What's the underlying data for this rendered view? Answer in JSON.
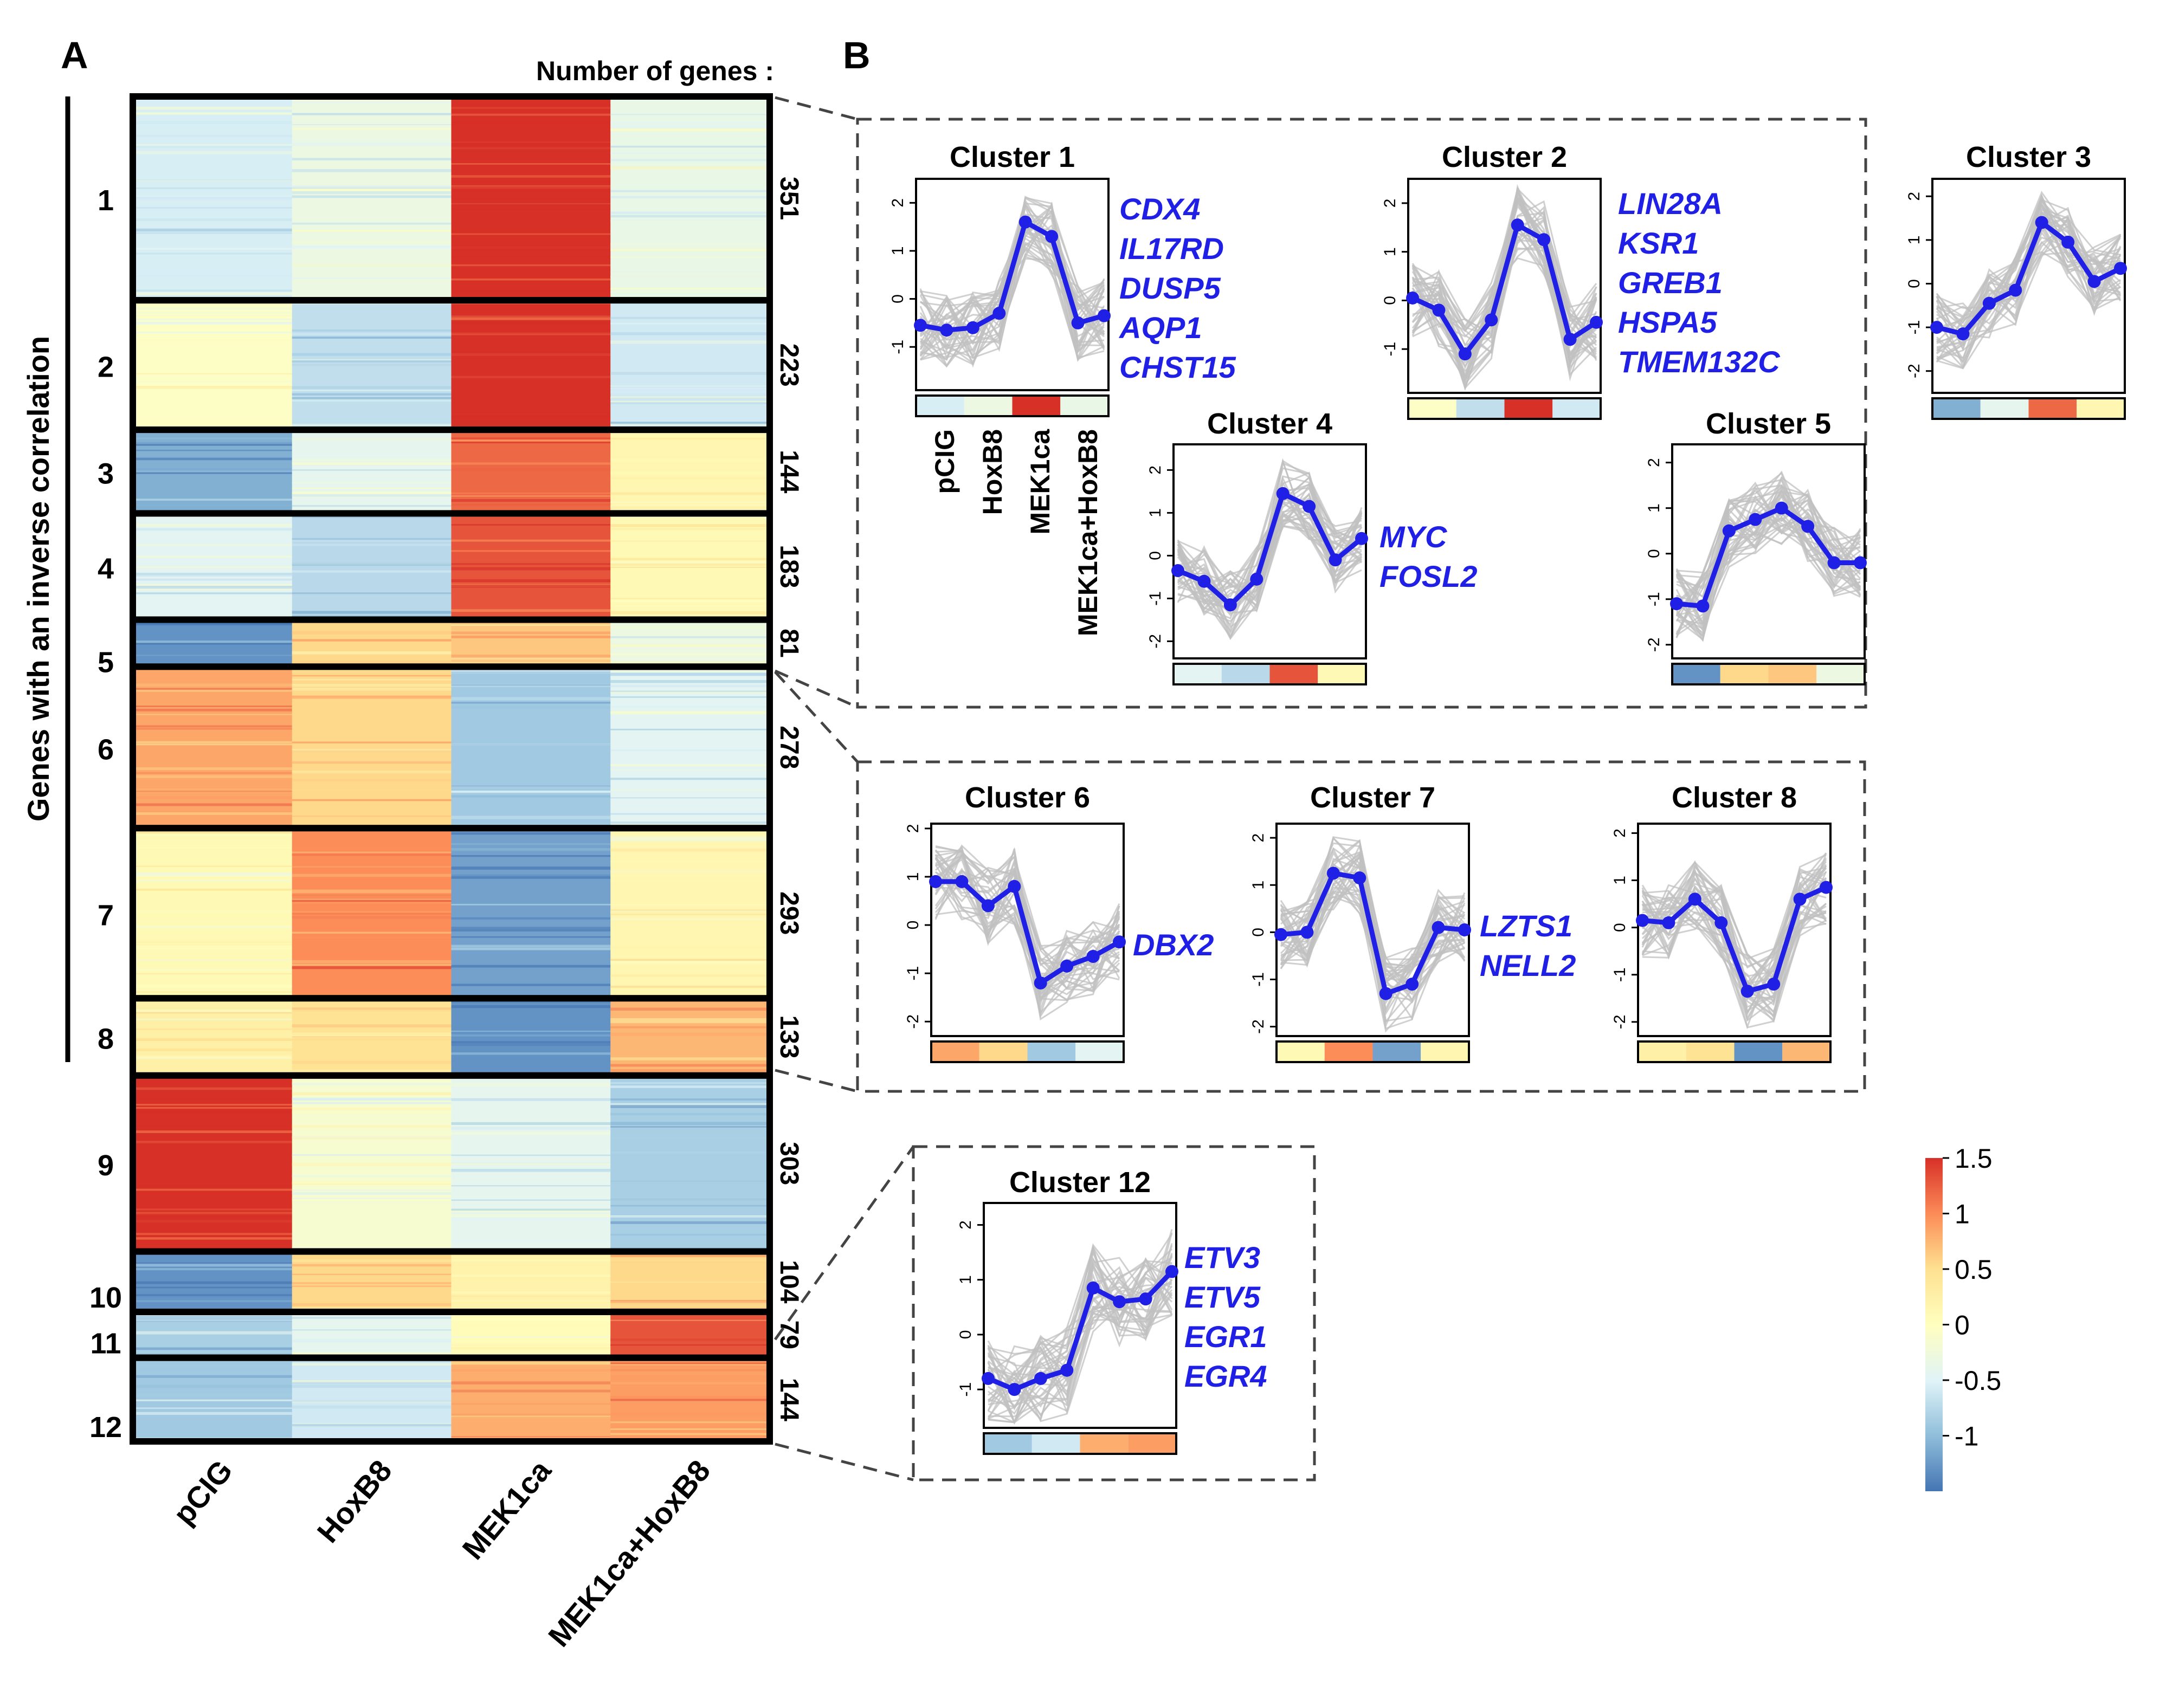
{
  "panel_a": {
    "label": "A",
    "header": "Number of genes :",
    "side_label": "Genes with an inverse correlation",
    "conditions": [
      "pCIG",
      "HoxB8",
      "MEK1ca",
      "MEK1ca+HoxB8"
    ],
    "clusters": [
      {
        "id": "1",
        "count": 351,
        "values": [
          -0.55,
          -0.3,
          1.5,
          -0.35
        ]
      },
      {
        "id": "2",
        "count": 223,
        "values": [
          -0.05,
          -0.7,
          1.5,
          -0.6
        ]
      },
      {
        "id": "3",
        "count": 144,
        "values": [
          -1.1,
          -0.4,
          1.2,
          0.15
        ]
      },
      {
        "id": "4",
        "count": 183,
        "values": [
          -0.45,
          -0.75,
          1.3,
          0.1
        ]
      },
      {
        "id": "5",
        "count": 81,
        "values": [
          -1.3,
          0.55,
          0.65,
          -0.3
        ]
      },
      {
        "id": "6",
        "count": 278,
        "values": [
          0.85,
          0.55,
          -0.9,
          -0.45
        ]
      },
      {
        "id": "7",
        "count": 293,
        "values": [
          0.1,
          1.0,
          -1.2,
          0.15
        ]
      },
      {
        "id": "8",
        "count": 133,
        "values": [
          0.25,
          0.45,
          -1.3,
          0.75
        ]
      },
      {
        "id": "9",
        "count": 303,
        "values": [
          1.5,
          -0.15,
          -0.4,
          -0.85
        ]
      },
      {
        "id": "10",
        "count": 104,
        "values": [
          -1.3,
          0.55,
          0.2,
          0.55
        ]
      },
      {
        "id": "11",
        "count": 79,
        "values": [
          -0.85,
          -0.4,
          0.05,
          1.3
        ]
      },
      {
        "id": "12",
        "count": 144,
        "values": [
          -0.9,
          -0.6,
          0.8,
          0.9
        ]
      }
    ]
  },
  "panel_b": {
    "label": "B",
    "axis_conditions": [
      "pCIG",
      "HoxB8",
      "MEK1ca",
      "MEK1ca+HoxB8"
    ]
  },
  "colors": {
    "line": "#1f1fe6",
    "gene_text": "#1f1fe6",
    "background_lines": "#c0c0c0",
    "colorscale": [
      "#4575b4",
      "#91bfdb",
      "#e0f3f8",
      "#ffffbf",
      "#fee090",
      "#fc8d59",
      "#d73027"
    ]
  },
  "colorbar": {
    "ticks": [
      "1.5",
      "1",
      "0.5",
      "0",
      "-0.5",
      "-1"
    ],
    "range": [
      -1.5,
      1.5
    ]
  },
  "chart_data": [
    {
      "type": "heatmap",
      "title": "",
      "xlabel": "",
      "ylabel": "Genes with an inverse correlation",
      "categories": [
        "pCIG",
        "HoxB8",
        "MEK1ca",
        "MEK1ca+HoxB8"
      ],
      "rows": [
        "1",
        "2",
        "3",
        "4",
        "5",
        "6",
        "7",
        "8",
        "9",
        "10",
        "11",
        "12"
      ],
      "row_counts": [
        351,
        223,
        144,
        183,
        81,
        278,
        293,
        133,
        303,
        104,
        79,
        144
      ]
    },
    {
      "type": "line",
      "title": "Cluster 1",
      "x": [
        1,
        2,
        3,
        4,
        5,
        6,
        7,
        8
      ],
      "ylim": [
        -1.9,
        2.5
      ],
      "yticks": [
        -1,
        0,
        1,
        2
      ],
      "series": [
        {
          "name": "mean",
          "values": [
            -0.55,
            -0.65,
            -0.6,
            -0.3,
            1.6,
            1.3,
            -0.5,
            -0.35
          ]
        }
      ],
      "genes": [
        "CDX4",
        "IL17RD",
        "DUSP5",
        "AQP1",
        "CHST15"
      ],
      "strip": [
        -0.55,
        -0.3,
        1.5,
        -0.35
      ]
    },
    {
      "type": "line",
      "title": "Cluster 2",
      "x": [
        1,
        2,
        3,
        4,
        5,
        6,
        7,
        8
      ],
      "ylim": [
        -1.9,
        2.5
      ],
      "yticks": [
        -1,
        0,
        1,
        2
      ],
      "series": [
        {
          "name": "mean",
          "values": [
            0.05,
            -0.2,
            -1.1,
            -0.4,
            1.55,
            1.25,
            -0.8,
            -0.45
          ]
        }
      ],
      "genes": [
        "LIN28A",
        "KSR1",
        "GREB1",
        "HSPA5",
        "TMEM132C"
      ],
      "strip": [
        -0.05,
        -0.7,
        1.5,
        -0.6
      ]
    },
    {
      "type": "line",
      "title": "Cluster 3",
      "x": [
        1,
        2,
        3,
        4,
        5,
        6,
        7,
        8
      ],
      "ylim": [
        -2.5,
        2.4
      ],
      "yticks": [
        -2,
        -1,
        0,
        1,
        2
      ],
      "series": [
        {
          "name": "mean",
          "values": [
            -1.0,
            -1.15,
            -0.45,
            -0.15,
            1.4,
            0.95,
            0.05,
            0.35
          ]
        }
      ],
      "genes": [],
      "strip": [
        -1.1,
        -0.4,
        1.2,
        0.15
      ]
    },
    {
      "type": "line",
      "title": "Cluster 4",
      "x": [
        1,
        2,
        3,
        4,
        5,
        6,
        7,
        8
      ],
      "ylim": [
        -2.4,
        2.6
      ],
      "yticks": [
        -2,
        -1,
        0,
        1,
        2
      ],
      "series": [
        {
          "name": "mean",
          "values": [
            -0.35,
            -0.6,
            -1.15,
            -0.55,
            1.45,
            1.15,
            -0.1,
            0.4
          ]
        }
      ],
      "genes": [
        "MYC",
        "FOSL2"
      ],
      "strip": [
        -0.45,
        -0.75,
        1.3,
        0.1
      ]
    },
    {
      "type": "line",
      "title": "Cluster 5",
      "x": [
        1,
        2,
        3,
        4,
        5,
        6,
        7,
        8
      ],
      "ylim": [
        -2.3,
        2.4
      ],
      "yticks": [
        -2,
        -1,
        0,
        1,
        2
      ],
      "series": [
        {
          "name": "mean",
          "values": [
            -1.1,
            -1.15,
            0.5,
            0.75,
            1.0,
            0.6,
            -0.2,
            -0.2
          ]
        }
      ],
      "genes": [],
      "strip": [
        -1.3,
        0.55,
        0.65,
        -0.3
      ]
    },
    {
      "type": "line",
      "title": "Cluster 6",
      "x": [
        1,
        2,
        3,
        4,
        5,
        6,
        7,
        8
      ],
      "ylim": [
        -2.3,
        2.1
      ],
      "yticks": [
        -2,
        -1,
        0,
        1,
        2
      ],
      "series": [
        {
          "name": "mean",
          "values": [
            0.9,
            0.9,
            0.4,
            0.8,
            -1.2,
            -0.85,
            -0.65,
            -0.35
          ]
        }
      ],
      "genes": [
        "DBX2"
      ],
      "strip": [
        0.85,
        0.55,
        -0.9,
        -0.45
      ]
    },
    {
      "type": "line",
      "title": "Cluster 7",
      "x": [
        1,
        2,
        3,
        4,
        5,
        6,
        7,
        8
      ],
      "ylim": [
        -2.2,
        2.3
      ],
      "yticks": [
        -2,
        -1,
        0,
        1,
        2
      ],
      "series": [
        {
          "name": "mean",
          "values": [
            -0.05,
            0.0,
            1.25,
            1.15,
            -1.3,
            -1.1,
            0.1,
            0.05
          ]
        }
      ],
      "genes": [
        "LZTS1",
        "NELL2"
      ],
      "strip": [
        0.1,
        1.0,
        -1.2,
        0.15
      ]
    },
    {
      "type": "line",
      "title": "Cluster 8",
      "x": [
        1,
        2,
        3,
        4,
        5,
        6,
        7,
        8
      ],
      "ylim": [
        -2.3,
        2.2
      ],
      "yticks": [
        -2,
        -1,
        0,
        1,
        2
      ],
      "series": [
        {
          "name": "mean",
          "values": [
            0.15,
            0.1,
            0.6,
            0.1,
            -1.35,
            -1.2,
            0.6,
            0.85
          ]
        }
      ],
      "genes": [],
      "strip": [
        0.25,
        0.45,
        -1.3,
        0.75
      ]
    },
    {
      "type": "line",
      "title": "Cluster 12",
      "x": [
        1,
        2,
        3,
        4,
        5,
        6,
        7,
        8
      ],
      "ylim": [
        -1.7,
        2.4
      ],
      "yticks": [
        -1,
        0,
        1,
        2
      ],
      "series": [
        {
          "name": "mean",
          "values": [
            -0.8,
            -1.0,
            -0.8,
            -0.65,
            0.85,
            0.6,
            0.65,
            1.15
          ]
        }
      ],
      "genes": [
        "ETV3",
        "ETV5",
        "EGR1",
        "EGR4"
      ],
      "strip": [
        -0.9,
        -0.6,
        0.8,
        0.9
      ]
    }
  ]
}
